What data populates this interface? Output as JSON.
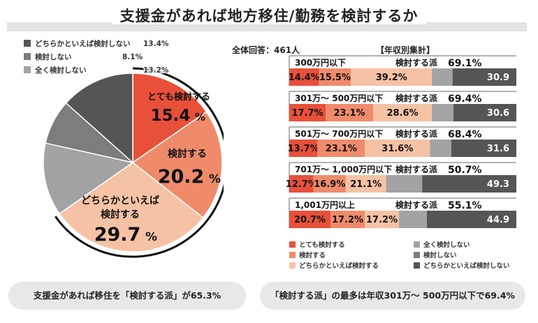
{
  "title": "支援金があれば地方移住/勤務を検討するか",
  "total_label": "全体回答：461人",
  "income_title": "【年収別集計】",
  "colors": {
    "totemo": "#e8503a",
    "kentou": "#ef8b6b",
    "dochira_kentou": "#f6c2a5",
    "mattaku": "#a3a3a3",
    "shinai": "#7d7d7d",
    "dochira_shinai": "#555555"
  },
  "pie_labels": {
    "totemo_name": "とても検討する",
    "totemo_pct": "15.4",
    "kentou_name": "検討する",
    "kentou_pct": "20.2",
    "dochira_name1": "どちらかといえば",
    "dochira_name2": "検討する",
    "dochira_pct": "29.7",
    "percent_sign": "%"
  },
  "pie_legend": [
    {
      "label": "どちらかといえば検討しない",
      "value": "13.4%",
      "color": "#555555"
    },
    {
      "label": "検討しない",
      "value": "8.1%",
      "color": "#7d7d7d"
    },
    {
      "label": "全く検討しない",
      "value": "13.2%",
      "color": "#a3a3a3"
    }
  ],
  "bar_legend": [
    {
      "label": "とても検討する",
      "color": "#e8503a"
    },
    {
      "label": "全く検討しない",
      "color": "#a3a3a3"
    },
    {
      "label": "検討する",
      "color": "#ef8b6b"
    },
    {
      "label": "検討しない",
      "color": "#7d7d7d"
    },
    {
      "label": "どちらかといえば検討する",
      "color": "#f6c2a5"
    },
    {
      "label": "どちらかといえば検討しない",
      "color": "#555555"
    }
  ],
  "summary_left": "支援金があれば移住を「検討する派」が65.3%",
  "summary_right": "「検討する派」の最多は年収301万～ 500万円以下で69.4%",
  "chart_data": [
    {
      "type": "pie",
      "title": "支援金があれば地方移住/勤務を検討するか",
      "slices": [
        {
          "name": "とても検討する",
          "value": 15.4
        },
        {
          "name": "検討する",
          "value": 20.2
        },
        {
          "name": "どちらかといえば検討する",
          "value": 29.7
        },
        {
          "name": "全く検討しない",
          "value": 13.2
        },
        {
          "name": "検討しない",
          "value": 8.1
        },
        {
          "name": "どちらかといえば検討しない",
          "value": 13.4
        }
      ]
    },
    {
      "type": "bar",
      "title": "【年収別集計】",
      "stacked": true,
      "orientation": "horizontal",
      "positive_label": "検討する派",
      "categories": [
        "300万円以下",
        "301万～ 500万円以下",
        "501万～ 700万円以下",
        "701万～ 1,000万円以下",
        "1,001万円以上"
      ],
      "positive_share_labels": [
        "69.1%",
        "69.4%",
        "68.4%",
        "50.7%",
        "55.1%"
      ],
      "series": [
        {
          "name": "とても検討する",
          "values": [
            14.4,
            17.7,
            13.7,
            12.7,
            20.7
          ]
        },
        {
          "name": "検討する",
          "values": [
            15.5,
            23.1,
            23.1,
            16.9,
            17.2
          ]
        },
        {
          "name": "どちらかといえば検討する",
          "values": [
            39.2,
            28.6,
            31.6,
            21.1,
            17.2
          ]
        },
        {
          "name": "全く検討しない",
          "values": [
            null,
            null,
            null,
            null,
            null
          ]
        },
        {
          "name": "検討しない",
          "values": [
            null,
            null,
            null,
            null,
            null
          ]
        },
        {
          "name": "どちらかといえば検討しない",
          "values": [
            30.9,
            30.6,
            31.6,
            49.3,
            44.9
          ]
        }
      ],
      "estimated_segments": [
        [
          null,
          null,
          null,
          null,
          null
        ],
        [
          null,
          null,
          null,
          null,
          null
        ],
        [
          null,
          null,
          null,
          null,
          null
        ],
        [
          10.0,
          10.5,
          10.4,
          18.9,
          14.0
        ],
        [
          0.0,
          0.0,
          0.0,
          0.0,
          0.0
        ],
        [
          null,
          null,
          null,
          null,
          null
        ]
      ]
    }
  ]
}
